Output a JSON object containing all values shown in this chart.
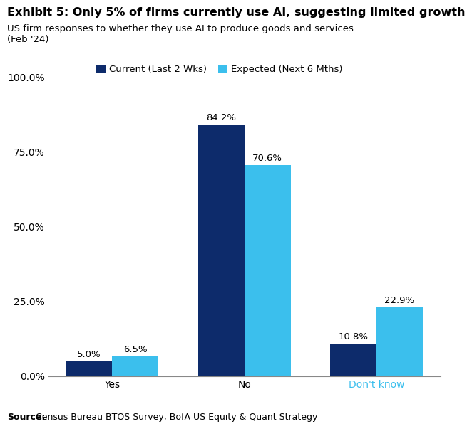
{
  "title": "Exhibit 5: Only 5% of firms currently use AI, suggesting limited growth",
  "subtitle": "US firm responses to whether they use AI to produce goods and services\n(Feb '24)",
  "source": "Source: Census Bureau BTOS Survey, BofA US Equity & Quant Strategy",
  "categories": [
    "Yes",
    "No",
    "Don't know"
  ],
  "current_values": [
    5.0,
    84.2,
    10.8
  ],
  "expected_values": [
    6.5,
    70.6,
    22.9
  ],
  "current_label": "Current (Last 2 Wks)",
  "expected_label": "Expected (Next 6 Mths)",
  "current_color": "#0D2B6B",
  "expected_color": "#3BBFED",
  "bar_width": 0.35,
  "ylim": [
    0,
    107
  ],
  "yticks": [
    0,
    25.0,
    50.0,
    75.0,
    100.0
  ],
  "ytick_labels": [
    "0.0%",
    "25.0%",
    "50.0%",
    "75.0%",
    "100.0%"
  ],
  "background_color": "#FFFFFF",
  "title_fontsize": 11.5,
  "subtitle_fontsize": 9.5,
  "tick_fontsize": 10,
  "label_fontsize": 9.5,
  "legend_fontsize": 9.5,
  "source_fontsize": 9,
  "source_bold": "Source:",
  "source_rest": " Census Bureau BTOS Survey, BofA US Equity & Quant Strategy"
}
